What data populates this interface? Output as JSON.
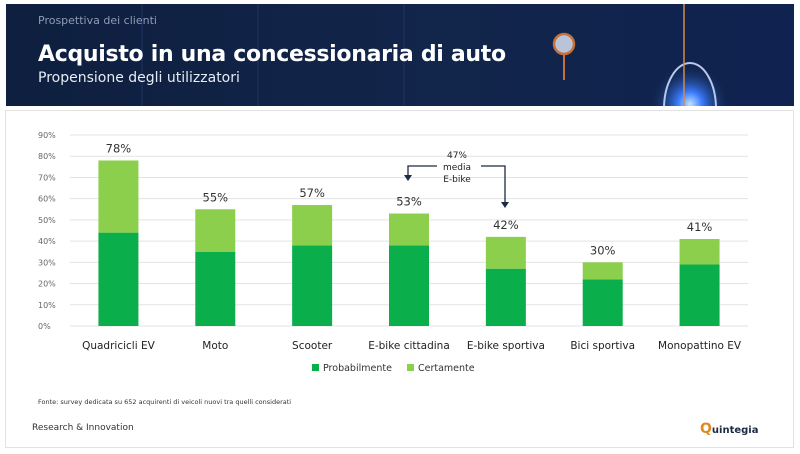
{
  "header": {
    "kicker": "Prospettiva dei clienti",
    "title": "Acquisto in una concessionaria di auto",
    "subtitle": "Propensione degli utilizzatori"
  },
  "chart_data": {
    "type": "bar",
    "stacked": true,
    "categories": [
      "Quadricicli EV",
      "Moto",
      "Scooter",
      "E-bike cittadina",
      "E-bike sportiva",
      "Bici sportiva",
      "Monopattino EV"
    ],
    "series": [
      {
        "name": "Probabilmente",
        "color": "#0aae4a",
        "values": [
          44,
          35,
          38,
          38,
          27,
          22,
          29
        ]
      },
      {
        "name": "Certamente",
        "color": "#8ccf4d",
        "values": [
          34,
          20,
          19,
          15,
          15,
          8,
          12
        ]
      }
    ],
    "total_labels": [
      "78%",
      "55%",
      "57%",
      "53%",
      "42%",
      "30%",
      "41%"
    ],
    "yticks": [
      "0%",
      "10%",
      "20%",
      "30%",
      "40%",
      "50%",
      "60%",
      "70%",
      "80%",
      "90%"
    ],
    "ylim": [
      0,
      90
    ],
    "grid": true,
    "legend": "bottom",
    "annotation": {
      "lines": [
        "47%",
        "media",
        "E-bike"
      ]
    }
  },
  "footer": {
    "source": "Fonte: survey dedicata su 652 acquirenti di veicoli nuovi tra quelli considerati",
    "department": "Research & Innovation",
    "logo": "Quintegia"
  }
}
